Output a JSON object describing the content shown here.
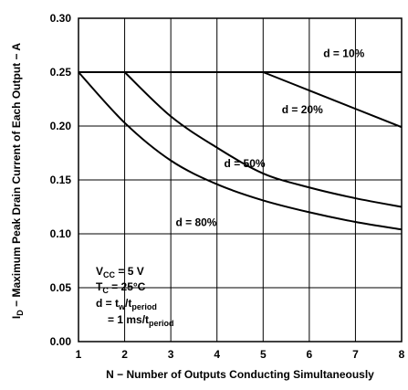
{
  "chart_data": {
    "type": "line",
    "xlabel": "N − Number of Outputs Conducting Simultaneously",
    "ylabel_main": "I",
    "ylabel_sub": "D",
    "ylabel_rest": " − Maximum Peak Drain Current of Each Output − A",
    "xlim": [
      1,
      8
    ],
    "ylim": [
      0,
      0.3
    ],
    "x_ticks": [
      "1",
      "2",
      "3",
      "4",
      "5",
      "6",
      "7",
      "8"
    ],
    "y_ticks": [
      "0.00",
      "0.05",
      "0.10",
      "0.15",
      "0.20",
      "0.25",
      "0.30"
    ],
    "grid": true,
    "series": [
      {
        "name": "d = 10%",
        "x": [
          1,
          2,
          3,
          4,
          5,
          6,
          7,
          8
        ],
        "y": [
          0.25,
          0.25,
          0.25,
          0.25,
          0.25,
          0.25,
          0.25,
          0.25
        ]
      },
      {
        "name": "d = 20%",
        "x": [
          5,
          6,
          7,
          8
        ],
        "y": [
          0.25,
          0.233,
          0.216,
          0.199
        ]
      },
      {
        "name": "d = 50%",
        "x": [
          2,
          3,
          4,
          5,
          6,
          7,
          8
        ],
        "y": [
          0.25,
          0.209,
          0.18,
          0.156,
          0.143,
          0.133,
          0.125
        ]
      },
      {
        "name": "d = 80%",
        "x": [
          1,
          2,
          3,
          4,
          5,
          6,
          7,
          8
        ],
        "y": [
          0.25,
          0.203,
          0.168,
          0.146,
          0.131,
          0.12,
          0.111,
          0.104
        ]
      }
    ],
    "labels": [
      {
        "text": "d = 10%",
        "x": 6.75,
        "y": 0.264
      },
      {
        "text": "d = 20%",
        "x": 5.85,
        "y": 0.212
      },
      {
        "text": "d = 50%",
        "x": 4.6,
        "y": 0.162
      },
      {
        "text": "d = 80%",
        "x": 3.55,
        "y": 0.107
      }
    ],
    "conditions": {
      "vcc": {
        "main": "V",
        "sub": "CC",
        "rest": " = 5 V"
      },
      "tc": {
        "main": "T",
        "sub": "C",
        "rest": " = 25°C"
      },
      "duty": {
        "main": "d = t",
        "sub1": "w",
        "mid": "/t",
        "sub2": "period"
      },
      "period": {
        "main": "= 1 ms/t",
        "sub": "period"
      }
    }
  }
}
